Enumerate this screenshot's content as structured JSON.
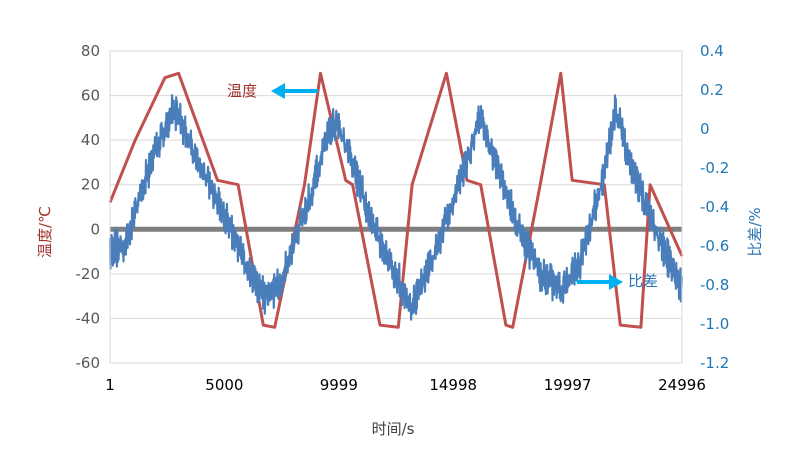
{
  "chart_data": {
    "type": "line",
    "x_axis": {
      "label": "时间/s",
      "range": [
        1,
        24996
      ],
      "ticks": [
        1,
        5000,
        9999,
        14998,
        19997,
        24996
      ]
    },
    "y_left": {
      "label": "温度/℃",
      "range": [
        -60,
        80
      ],
      "ticks": [
        80,
        60,
        40,
        20,
        0,
        -20,
        -40,
        -60
      ]
    },
    "y_right": {
      "label": "比差/%",
      "range": [
        -1.2,
        0.4
      ],
      "ticks": [
        0.4,
        0.2,
        0,
        -0.2,
        -0.4,
        -0.6,
        -0.8,
        -1.0,
        -1.2
      ],
      "tick_labels": [
        "0.4",
        "0.2",
        "0",
        "-0.2",
        "-0.4",
        "-0.6",
        "-0.8",
        "-1.0",
        "-1.2"
      ]
    },
    "grid": "horizontal",
    "series": [
      {
        "axis": "left",
        "color": "#c0504d",
        "style": "line",
        "x": [
          1,
          1100,
          2400,
          3000,
          4700,
          5600,
          6700,
          7200,
          8500,
          9200,
          10300,
          10600,
          11800,
          12600,
          13200,
          14700,
          15600,
          16200,
          17300,
          17600,
          18800,
          19700,
          20200,
          21600,
          22300,
          23200,
          23600,
          24996
        ],
        "y": [
          12,
          40,
          68,
          70,
          22,
          20,
          -43,
          -44,
          20,
          70,
          22,
          20,
          -43,
          -44,
          20,
          70,
          22,
          20,
          -43,
          -44,
          20,
          70,
          22,
          20,
          -43,
          -44,
          20,
          -12
        ]
      },
      {
        "axis": "left",
        "color": "#7f7f7f",
        "style": "line",
        "x": [
          1,
          24996
        ],
        "y": [
          0,
          0
        ]
      },
      {
        "axis": "right",
        "color": "#4a7ebb",
        "style": "noisy-band",
        "x": [
          1,
          600,
          2000,
          2800,
          4000,
          5200,
          6200,
          6800,
          7500,
          8800,
          9800,
          10500,
          11500,
          12500,
          13200,
          14000,
          15200,
          16200,
          16800,
          17800,
          18800,
          19700,
          20500,
          21500,
          22100,
          22800,
          23800,
          24996
        ],
        "y": [
          -0.62,
          -0.6,
          -0.1,
          0.1,
          -0.2,
          -0.5,
          -0.75,
          -0.87,
          -0.78,
          -0.32,
          0.05,
          -0.15,
          -0.5,
          -0.75,
          -0.92,
          -0.7,
          -0.3,
          0.05,
          -0.15,
          -0.5,
          -0.74,
          -0.82,
          -0.7,
          -0.28,
          0.1,
          -0.2,
          -0.5,
          -0.82
        ]
      }
    ],
    "annotations": [
      {
        "text": "温度",
        "arrow": "left",
        "near_series": "temperature"
      },
      {
        "text": "比差",
        "arrow": "right",
        "near_series": "ratio-error"
      }
    ]
  }
}
